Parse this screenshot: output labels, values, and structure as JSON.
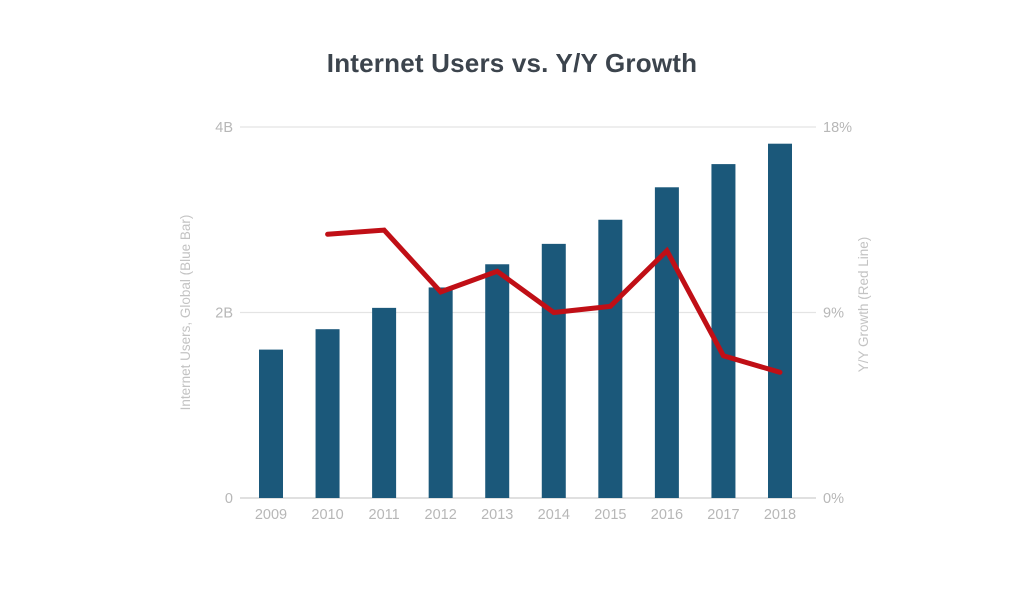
{
  "chart_data": {
    "type": "bar",
    "subtype": "combo-bar-line",
    "title": "Internet Users vs. Y/Y Growth",
    "categories": [
      "2009",
      "2010",
      "2011",
      "2012",
      "2013",
      "2014",
      "2015",
      "2016",
      "2017",
      "2018"
    ],
    "series": [
      {
        "name": "Internet Users, Global (Blue Bar)",
        "type": "bar",
        "axis": "left",
        "unit": "billions",
        "values": [
          1.6,
          1.82,
          2.05,
          2.27,
          2.52,
          2.74,
          3.0,
          3.35,
          3.6,
          3.82
        ]
      },
      {
        "name": "Y/Y Growth (Red Line)",
        "type": "line",
        "axis": "right",
        "unit": "percent",
        "values": [
          null,
          12.8,
          13.0,
          10.0,
          11.0,
          9.0,
          9.3,
          12.0,
          6.9,
          6.1
        ]
      }
    ],
    "left_axis": {
      "title": "Internet Users, Global (Blue Bar)",
      "ticks": [
        "0",
        "2B",
        "4B"
      ],
      "tick_values": [
        0,
        2,
        4
      ],
      "range": [
        0,
        4
      ]
    },
    "right_axis": {
      "title": "Y/Y Growth (Red Line)",
      "ticks": [
        "0%",
        "9%",
        "18%"
      ],
      "tick_values": [
        0,
        9,
        18
      ],
      "range": [
        0,
        18
      ]
    },
    "xlabel": "",
    "ylabel_left": "Internet Users, Global (Blue Bar)",
    "ylabel_right": "Y/Y Growth (Red Line)",
    "grid": true,
    "legend_position": "none"
  },
  "style": {
    "background": "#ffffff",
    "bar_color": "#1b587a",
    "line_color": "#c00f16",
    "title_color": "#3c444d",
    "tick_label_color": "#b7b7b7",
    "axis_title_color": "#c3c3c3",
    "gridline_color": "#e4e4e4",
    "axis_line_color": "#d5d5d5"
  }
}
